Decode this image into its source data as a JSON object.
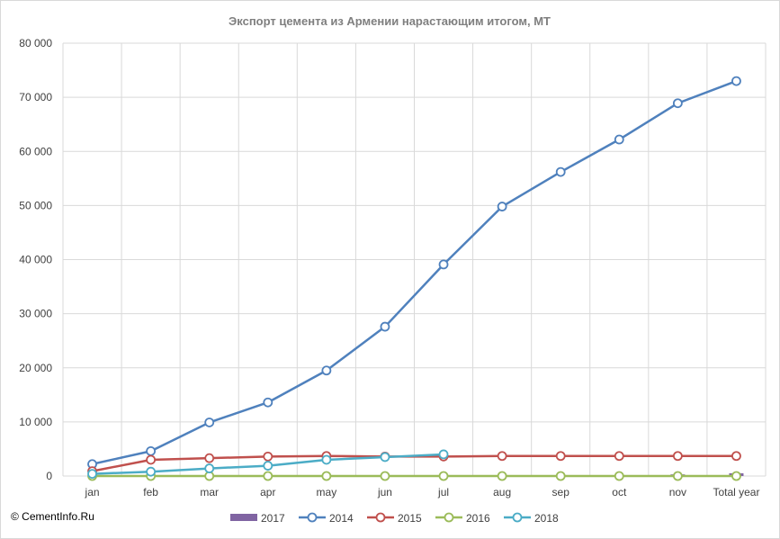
{
  "chart_data": {
    "type": "line",
    "title": "Экспорт цемента из Армении нарастающим  итогом, МТ",
    "categories": [
      "jan",
      "feb",
      "mar",
      "apr",
      "may",
      "jun",
      "jul",
      "aug",
      "sep",
      "oct",
      "nov",
      "Total year"
    ],
    "ylim": [
      0,
      80000
    ],
    "yticks": [
      0,
      10000,
      20000,
      30000,
      40000,
      50000,
      60000,
      70000,
      80000
    ],
    "ytick_labels": [
      "0",
      "10 000",
      "20 000",
      "30 000",
      "40 000",
      "50 000",
      "60 000",
      "70 000",
      "80 000"
    ],
    "grid": true,
    "legend_position": "bottom",
    "legend": [
      "2017",
      "2014",
      "2015",
      "2016",
      "2018"
    ],
    "series": [
      {
        "name": "2017",
        "kind": "bar",
        "color": "#8064a2",
        "values": [
          null,
          null,
          null,
          null,
          null,
          null,
          null,
          null,
          null,
          null,
          300,
          500
        ]
      },
      {
        "name": "2014",
        "kind": "line",
        "color": "#4f81bd",
        "values": [
          2200,
          4600,
          9900,
          13600,
          19500,
          27600,
          39100,
          49800,
          56200,
          62200,
          68900,
          73000
        ]
      },
      {
        "name": "2015",
        "kind": "line",
        "color": "#c0504d",
        "values": [
          900,
          3000,
          3300,
          3600,
          3700,
          3600,
          3600,
          3700,
          3700,
          3700,
          3700,
          3700
        ]
      },
      {
        "name": "2016",
        "kind": "line",
        "color": "#9bbb59",
        "values": [
          0,
          0,
          0,
          0,
          0,
          0,
          0,
          0,
          0,
          0,
          0,
          0
        ]
      },
      {
        "name": "2018",
        "kind": "line",
        "color": "#4bacc6",
        "values": [
          400,
          800,
          1400,
          1900,
          3000,
          3500,
          4000,
          null,
          null,
          null,
          null,
          null
        ]
      }
    ]
  },
  "copyright": "© CementInfo.Ru"
}
